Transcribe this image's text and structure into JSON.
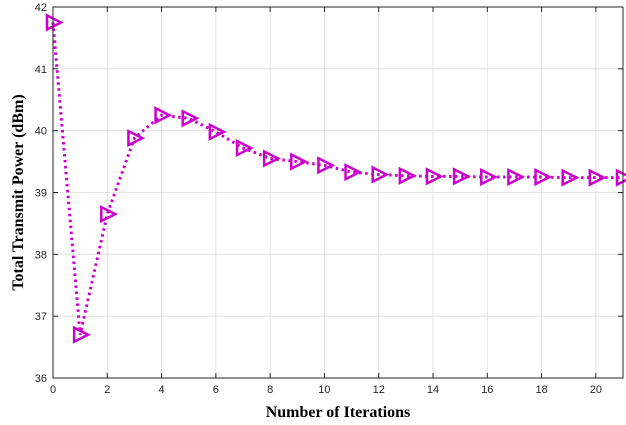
{
  "chart_data": {
    "type": "line",
    "title": "",
    "xlabel": "Number of Iterations",
    "ylabel": "Total Transmit Power (dBm)",
    "xlim": [
      0,
      21
    ],
    "ylim": [
      36,
      42
    ],
    "x_ticks": [
      0,
      2,
      4,
      6,
      8,
      10,
      12,
      14,
      16,
      18,
      20
    ],
    "y_ticks": [
      36,
      37,
      38,
      39,
      40,
      41,
      42
    ],
    "grid": true,
    "legend": "none",
    "series": [
      {
        "x": [
          0,
          1,
          2,
          3,
          4,
          5,
          6,
          7,
          8,
          9,
          10,
          11,
          12,
          13,
          14,
          15,
          16,
          17,
          18,
          19,
          20,
          21
        ],
        "values": [
          41.75,
          36.7,
          38.65,
          39.88,
          40.25,
          40.2,
          39.98,
          39.72,
          39.55,
          39.5,
          39.44,
          39.33,
          39.29,
          39.27,
          39.26,
          39.26,
          39.25,
          39.25,
          39.25,
          39.24,
          39.24,
          39.24
        ],
        "color": "#cc00cc",
        "line_style": "dotted",
        "marker": "right-triangle"
      }
    ]
  }
}
